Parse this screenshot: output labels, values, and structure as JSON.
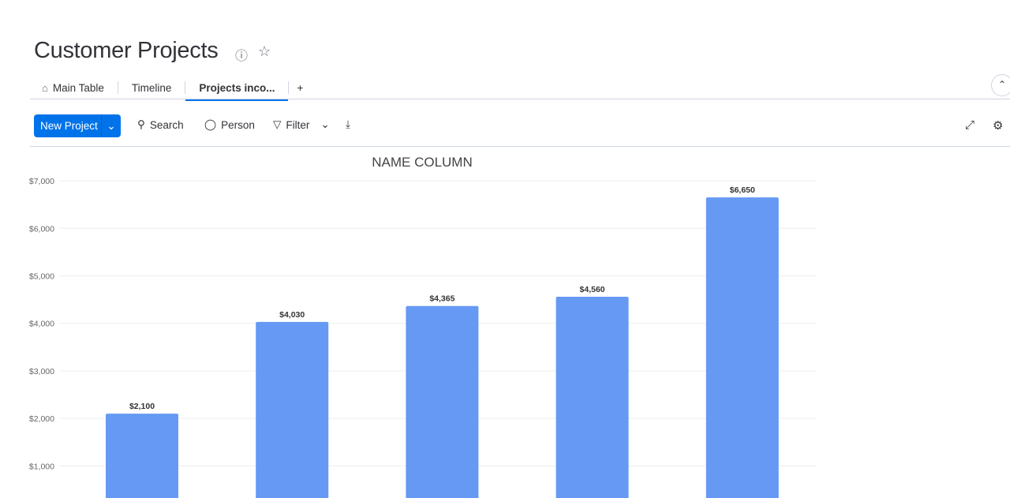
{
  "board": {
    "title": "Customer Projects"
  },
  "tabs": [
    {
      "label": "Main Table",
      "icon": "home-icon"
    },
    {
      "label": "Timeline"
    },
    {
      "label": "Projects inco...",
      "active": true
    }
  ],
  "add_tab": "+",
  "toolbar": {
    "new_label": "New Project",
    "search": "Search",
    "person": "Person",
    "filter": "Filter"
  },
  "colors": {
    "accent": "#0073ea",
    "bar": "#6699f3"
  },
  "chart_data": {
    "type": "bar",
    "title": "NAME COLUMN",
    "categories": [
      "",
      "",
      "",
      "",
      ""
    ],
    "values": [
      2100,
      4030,
      4365,
      4560,
      6650
    ],
    "data_labels": [
      "$2,100",
      "$4,030",
      "$4,365",
      "$4,560",
      "$6,650"
    ],
    "yticks": [
      "$1,000",
      "$2,000",
      "$3,000",
      "$4,000",
      "$5,000",
      "$6,000",
      "$7,000"
    ],
    "ylim": [
      0,
      7000
    ],
    "grid": true
  }
}
